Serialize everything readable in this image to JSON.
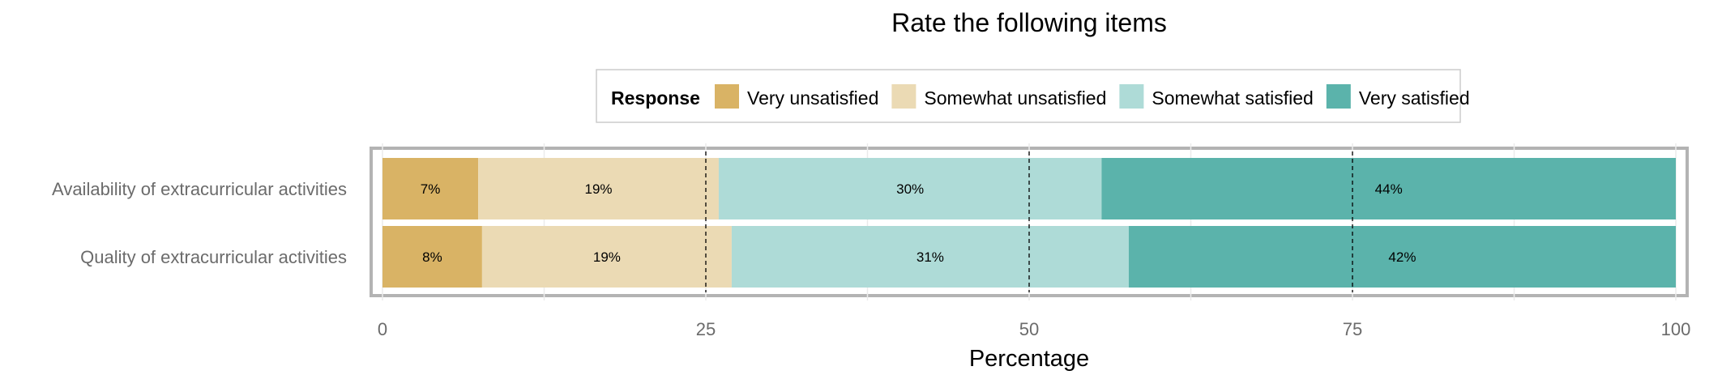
{
  "chart_data": {
    "type": "bar",
    "orientation": "horizontal",
    "stacked": true,
    "title": "Rate the following items",
    "xlabel": "Percentage",
    "ylabel": "",
    "xlim": [
      0,
      100
    ],
    "xticks": [
      0,
      25,
      50,
      75,
      100
    ],
    "reference_lines": [
      25,
      50,
      75
    ],
    "grid": true,
    "legend": {
      "title": "Response",
      "position": "top"
    },
    "categories": [
      "Availability of extracurricular activities",
      "Quality of extracurricular activities"
    ],
    "series": [
      {
        "name": "Very unsatisfied",
        "color": "#D9B365",
        "values": [
          7.4,
          7.7
        ],
        "labels": [
          "7%",
          "8%"
        ]
      },
      {
        "name": "Somewhat unsatisfied",
        "color": "#EBDAB4",
        "values": [
          18.6,
          19.3
        ],
        "labels": [
          "19%",
          "19%"
        ]
      },
      {
        "name": "Somewhat satisfied",
        "color": "#AEDBD7",
        "values": [
          29.6,
          30.7
        ],
        "labels": [
          "30%",
          "31%"
        ]
      },
      {
        "name": "Very satisfied",
        "color": "#5BB3AB",
        "values": [
          44.4,
          42.3
        ],
        "labels": [
          "44%",
          "42%"
        ]
      }
    ]
  }
}
